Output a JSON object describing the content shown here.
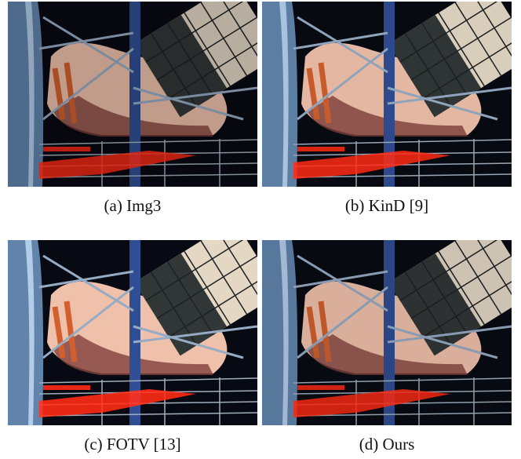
{
  "figure": {
    "panels": [
      {
        "id": "a",
        "caption": "(a) Img3",
        "variant": "original"
      },
      {
        "id": "b",
        "caption": "(b) KinD [9]",
        "variant": "kind"
      },
      {
        "id": "c",
        "caption": "(c) FOTV [13]",
        "variant": "fotv"
      },
      {
        "id": "d",
        "caption": "(d) Ours",
        "variant": "ours"
      }
    ]
  },
  "palette": {
    "background": "#080a12",
    "pillar": "#5d7ea3",
    "body_light": "#e4b7a2",
    "body_shadow": "#7b3d3a",
    "panel_light": "#d9cdbb",
    "panel_dark": "#2f3434",
    "red_glow": "#ff2a14"
  }
}
